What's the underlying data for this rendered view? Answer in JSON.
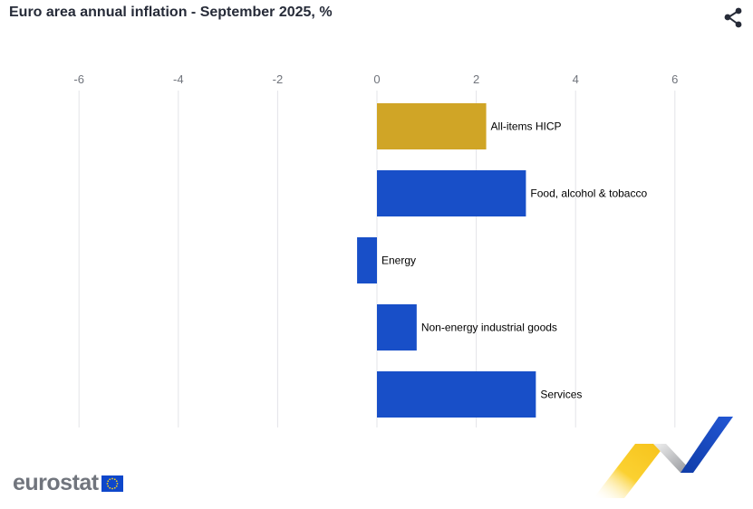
{
  "header": {
    "title": "Euro area annual inflation - September 2025, %"
  },
  "icons": {
    "share": "share-icon",
    "flag": "eu-flag-icon"
  },
  "brand": {
    "name": "eurostat"
  },
  "colors": {
    "highlight": "#d0a526",
    "bar": "#184fc8",
    "grid": "#e3e4e8",
    "tick_text": "#70747c",
    "label_text": "#000000"
  },
  "chart_data": {
    "type": "bar",
    "orientation": "horizontal",
    "title": "Euro area annual inflation - September 2025, %",
    "xlabel": "",
    "ylabel": "",
    "categories": [
      "All-items HICP",
      "Food, alcohol & tobacco",
      "Energy",
      "Non-energy industrial goods",
      "Services"
    ],
    "values": [
      2.2,
      3.0,
      -0.4,
      0.8,
      3.2
    ],
    "highlighted_category": "All-items HICP",
    "xlim": [
      -6,
      6
    ],
    "ticks": [
      -6,
      -4,
      -2,
      0,
      2,
      4,
      6
    ],
    "tick_labels": [
      "-6",
      "-4",
      "-2",
      "0",
      "2",
      "4",
      "6"
    ],
    "axis_position": "top",
    "grid": true,
    "legend": "none"
  }
}
